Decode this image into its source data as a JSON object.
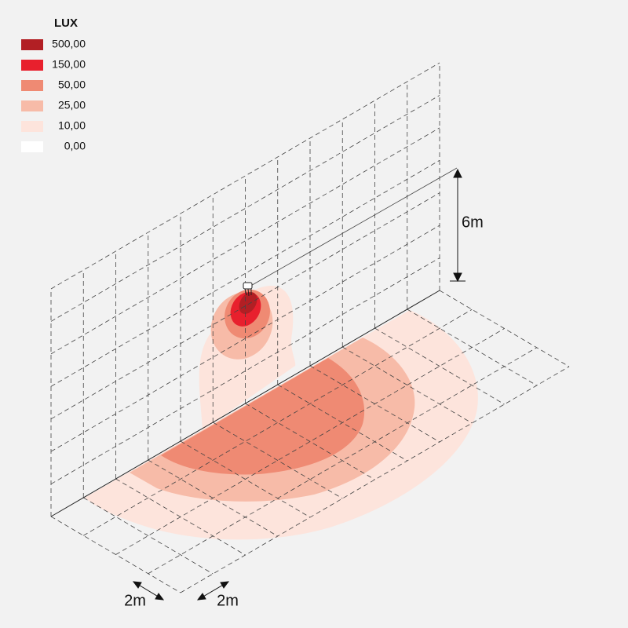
{
  "legend": {
    "title": "LUX",
    "items": [
      {
        "label": "500,00",
        "color": "#b21f24"
      },
      {
        "label": "150,00",
        "color": "#e8202d"
      },
      {
        "label": "50,00",
        "color": "#ef8a73"
      },
      {
        "label": "25,00",
        "color": "#f7bba8"
      },
      {
        "label": "10,00",
        "color": "#fde4dc"
      },
      {
        "label": "0,00",
        "color": "#ffffff"
      }
    ]
  },
  "dimensions": {
    "height": "6m",
    "width": "2m",
    "depth": "2m"
  }
}
